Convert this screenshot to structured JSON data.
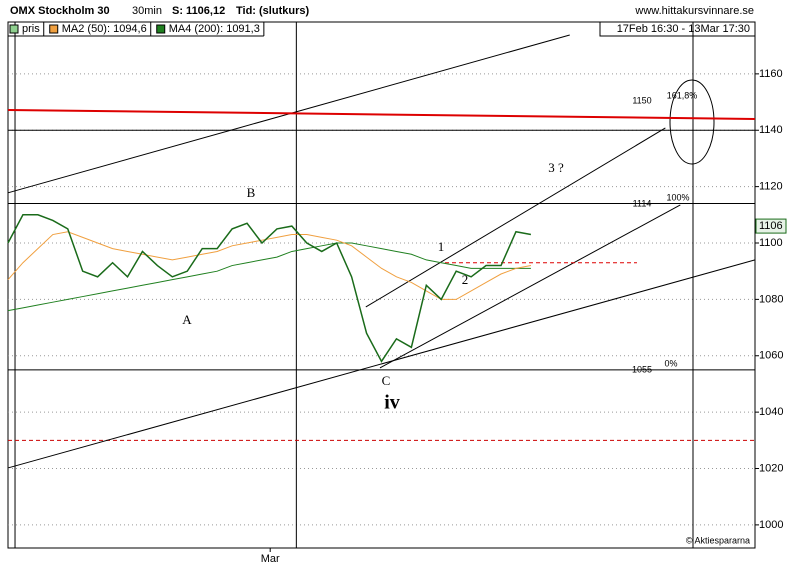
{
  "chart_data": {
    "type": "line",
    "title": "OMX Stockholm 30",
    "interval": "30min",
    "last": "S: 1106,12",
    "time_note": "Tid: (slutkurs)",
    "source": "www.hittakursvinnare.se",
    "period": "17Feb 16:30 - 13Mar 17:30",
    "copyright": "© Aktiespararna",
    "x": [
      0,
      2,
      4,
      6,
      8,
      10,
      12,
      14,
      16,
      18,
      20,
      22,
      24,
      26,
      28,
      30,
      32,
      34,
      36,
      38,
      40,
      42,
      44,
      46,
      48,
      50,
      52,
      54,
      56,
      58,
      60,
      62,
      64,
      66,
      68,
      70
    ],
    "series": [
      {
        "name": "pris",
        "color": "#1a6b1a",
        "legend_color": "#8fd08f",
        "values": [
          1100,
          1110,
          1110,
          1108,
          1105,
          1090,
          1088,
          1093,
          1088,
          1097,
          1092,
          1088,
          1090,
          1098,
          1098,
          1105,
          1107,
          1100,
          1105,
          1106,
          1100,
          1097,
          1100,
          1088,
          1068,
          1058,
          1066,
          1063,
          1085,
          1080,
          1090,
          1088,
          1092,
          1092,
          1104,
          1103
        ]
      },
      {
        "name": "MA2 (50): 1094,6",
        "color": "#f0a040",
        "values": [
          1087,
          1093,
          1098,
          1103,
          1104,
          1102,
          1100,
          1098,
          1097,
          1096,
          1095,
          1094,
          1095,
          1096,
          1097,
          1099,
          1100,
          1101,
          1102,
          1103,
          1103,
          1102,
          1101,
          1099,
          1095,
          1091,
          1088,
          1086,
          1083,
          1080,
          1080,
          1083,
          1086,
          1089,
          1091,
          1092
        ]
      },
      {
        "name": "MA4 (200): 1091,3",
        "color": "#208020",
        "values": [
          1076,
          1077,
          1078,
          1079,
          1080,
          1081,
          1082,
          1083,
          1084,
          1085,
          1086,
          1087,
          1088,
          1089,
          1090,
          1092,
          1093,
          1094,
          1095,
          1097,
          1098,
          1099,
          1100,
          1100,
          1099,
          1098,
          1097,
          1096,
          1094,
          1093,
          1092,
          1091,
          1091,
          1091,
          1091,
          1091
        ]
      }
    ],
    "last_price": 1106,
    "xlim": [
      0,
      100
    ],
    "ylim": [
      991.8,
      1178.4
    ],
    "xticks": [
      {
        "value": 35.1,
        "label": "Mar"
      }
    ],
    "yticks": [
      1000,
      1020,
      1040,
      1060,
      1080,
      1100,
      1120,
      1140,
      1160
    ],
    "grid": true,
    "hlines": [
      {
        "value": 1140,
        "color": "#000000",
        "dashed": false
      },
      {
        "value": 1114,
        "color": "#000000",
        "dashed": false
      },
      {
        "value": 1055,
        "color": "#000000",
        "dashed": false
      },
      {
        "value": 1030,
        "color": "#cc0000",
        "dashed": true
      }
    ],
    "vlines": [
      0.94,
      38.6,
      91.7
    ],
    "segments": [
      {
        "x": [
          0,
          75.2
        ],
        "y": [
          1117.8,
          1173.8
        ],
        "color": "#000000"
      },
      {
        "x": [
          0,
          100
        ],
        "y": [
          1147.2,
          1144.0
        ],
        "color": "#dd0000"
      },
      {
        "x": [
          0,
          100
        ],
        "y": [
          1020.2,
          1094.0
        ],
        "color": "#000000"
      },
      {
        "x": [
          49.8,
          90
        ],
        "y": [
          1055.7,
          1113.5
        ],
        "color": "#000000"
      },
      {
        "x": [
          47.9,
          88
        ],
        "y": [
          1077.3,
          1140.8
        ],
        "color": "#000000"
      },
      {
        "x": [
          58.5,
          84.2
        ],
        "y": [
          1093,
          1093
        ],
        "color": "#dd0000"
      }
    ],
    "annotations": [
      {
        "text": "B",
        "color": "#000000"
      },
      {
        "text": "A",
        "color": "#000000"
      },
      {
        "text": "C",
        "color": "#000000"
      },
      {
        "text": "iv",
        "color": "#cc0000"
      },
      {
        "text": "1",
        "color": "#000000"
      },
      {
        "text": "2",
        "color": "#000000"
      },
      {
        "text": "3 ?",
        "color": "#000000"
      },
      {
        "text": "1150",
        "color": "#000080"
      },
      {
        "text": "161,8%",
        "color": "#000080"
      },
      {
        "text": "1114",
        "color": "#000080"
      },
      {
        "text": "100%",
        "color": "#000080"
      },
      {
        "text": "1055",
        "color": "#000080"
      },
      {
        "text": "0%",
        "color": "#000080"
      }
    ]
  }
}
